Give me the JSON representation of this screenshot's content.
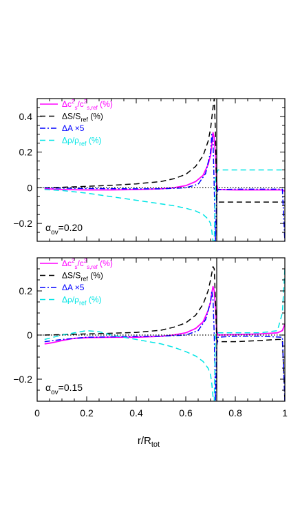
{
  "chart_data": [
    {
      "type": "line",
      "panel": "top",
      "annotation": {
        "symbol": "α",
        "subscript": "ov",
        "value_text": "=0.20"
      },
      "xlim": [
        0,
        1
      ],
      "ylim": [
        -0.3,
        0.5
      ],
      "yticks": [
        -0.2,
        0,
        0.2,
        0.4
      ],
      "ytick_labels": [
        "−0.2",
        "0",
        "0.2",
        "0.4"
      ],
      "grid": false,
      "legend_position": "top-left",
      "series": [
        {
          "name": "Δc²s/c²s,ref (%)",
          "color": "#ff00ff",
          "dash": "solid",
          "x": [
            0.03,
            0.1,
            0.2,
            0.3,
            0.4,
            0.5,
            0.55,
            0.6,
            0.64,
            0.67,
            0.69,
            0.7,
            0.705,
            0.71,
            0.715,
            0.72,
            0.725,
            0.73,
            0.8,
            0.9,
            0.99,
            1.0
          ],
          "y": [
            -0.005,
            -0.01,
            -0.012,
            -0.012,
            -0.01,
            -0.006,
            0.0,
            0.012,
            0.035,
            0.07,
            0.13,
            0.18,
            0.24,
            0.31,
            0.28,
            0.18,
            0.02,
            -0.01,
            -0.012,
            -0.012,
            -0.012,
            -0.02
          ]
        },
        {
          "name": "ΔS/Sref (%)",
          "color": "#000000",
          "dash": "long",
          "x": [
            0.03,
            0.1,
            0.2,
            0.3,
            0.4,
            0.5,
            0.55,
            0.6,
            0.64,
            0.67,
            0.69,
            0.7,
            0.71,
            0.715,
            0.72,
            0.725,
            0.73,
            0.8,
            0.9,
            0.99,
            1.0
          ],
          "y": [
            0.0,
            0.003,
            0.008,
            0.014,
            0.022,
            0.035,
            0.05,
            0.075,
            0.12,
            0.18,
            0.26,
            0.33,
            0.45,
            0.5,
            0.3,
            -0.07,
            -0.08,
            -0.08,
            -0.08,
            -0.08,
            -0.08
          ]
        },
        {
          "name": "ΔA ×5",
          "color": "#0000ff",
          "dash": "dashdot",
          "x": [
            0.03,
            0.1,
            0.2,
            0.3,
            0.4,
            0.5,
            0.6,
            0.65,
            0.68,
            0.7,
            0.705,
            0.71,
            0.715,
            0.72,
            0.725,
            0.73,
            0.8,
            0.9,
            0.99,
            1.0
          ],
          "y": [
            0.0,
            -0.002,
            -0.004,
            -0.005,
            -0.006,
            -0.006,
            0.0,
            0.02,
            0.08,
            0.2,
            0.3,
            0.26,
            0.0,
            -0.3,
            -0.05,
            -0.01,
            -0.008,
            -0.008,
            -0.008,
            -0.3
          ]
        },
        {
          "name": "Δρ/ρref (%)",
          "color": "#00e5e5",
          "dash": "long",
          "x": [
            0.03,
            0.1,
            0.2,
            0.3,
            0.4,
            0.5,
            0.55,
            0.6,
            0.64,
            0.67,
            0.69,
            0.7,
            0.705,
            0.71,
            0.712,
            0.715,
            0.72,
            0.73,
            0.8,
            0.9,
            0.99,
            1.0
          ],
          "y": [
            -0.01,
            -0.015,
            -0.03,
            -0.05,
            -0.07,
            -0.09,
            -0.1,
            -0.115,
            -0.13,
            -0.15,
            -0.175,
            -0.2,
            -0.24,
            -0.3,
            -0.3,
            -0.3,
            0.06,
            0.1,
            0.1,
            0.1,
            0.1,
            0.1
          ]
        },
        {
          "name": "",
          "color": "#000000",
          "dash": "dotted",
          "x": [
            0,
            1
          ],
          "y": [
            0,
            0
          ]
        }
      ],
      "vline_x": 0.725
    },
    {
      "type": "line",
      "panel": "bottom",
      "annotation": {
        "symbol": "α",
        "subscript": "ov",
        "value_text": "=0.15"
      },
      "xlim": [
        0,
        1
      ],
      "ylim": [
        -0.3,
        0.35
      ],
      "xticks": [
        0,
        0.2,
        0.4,
        0.6,
        0.8,
        1
      ],
      "xtick_labels": [
        "0",
        "0.2",
        "0.4",
        "0.6",
        "0.8",
        "1"
      ],
      "yticks": [
        -0.2,
        0,
        0.2
      ],
      "ytick_labels": [
        "−0.2",
        "0",
        "0.2"
      ],
      "xlabel": {
        "main": "r/R",
        "sub": "tot"
      },
      "grid": false,
      "legend_position": "top-left",
      "series": [
        {
          "name": "Δc²s/c²s,ref (%)",
          "color": "#ff00ff",
          "dash": "solid",
          "x": [
            0.03,
            0.06,
            0.1,
            0.15,
            0.2,
            0.3,
            0.4,
            0.5,
            0.55,
            0.6,
            0.64,
            0.67,
            0.69,
            0.7,
            0.705,
            0.71,
            0.715,
            0.72,
            0.725,
            0.73,
            0.8,
            0.9,
            0.97,
            0.99,
            1.0
          ],
          "y": [
            -0.04,
            -0.035,
            -0.025,
            -0.015,
            -0.012,
            -0.01,
            -0.01,
            -0.006,
            0.0,
            0.01,
            0.03,
            0.06,
            0.11,
            0.15,
            0.19,
            0.22,
            0.2,
            0.12,
            0.02,
            0.0,
            0.002,
            0.005,
            0.01,
            0.02,
            0.05
          ]
        },
        {
          "name": "ΔS/Sref (%)",
          "color": "#000000",
          "dash": "long",
          "x": [
            0.03,
            0.1,
            0.2,
            0.3,
            0.4,
            0.5,
            0.55,
            0.6,
            0.64,
            0.67,
            0.69,
            0.7,
            0.71,
            0.715,
            0.72,
            0.725,
            0.73,
            0.8,
            0.9,
            0.97,
            0.99,
            1.0
          ],
          "y": [
            0.0,
            0.002,
            0.005,
            0.008,
            0.012,
            0.022,
            0.035,
            0.055,
            0.09,
            0.14,
            0.2,
            0.25,
            0.31,
            0.3,
            0.15,
            -0.02,
            -0.03,
            -0.03,
            -0.025,
            -0.02,
            -0.02,
            -0.3
          ]
        },
        {
          "name": "ΔA ×5",
          "color": "#0000ff",
          "dash": "dashdot",
          "x": [
            0.03,
            0.1,
            0.2,
            0.3,
            0.4,
            0.5,
            0.6,
            0.65,
            0.68,
            0.7,
            0.705,
            0.71,
            0.715,
            0.72,
            0.725,
            0.73,
            0.8,
            0.9,
            0.99,
            1.0
          ],
          "y": [
            -0.03,
            -0.02,
            -0.01,
            -0.008,
            -0.006,
            -0.005,
            0.0,
            0.02,
            0.07,
            0.15,
            0.2,
            0.16,
            0.0,
            -0.3,
            -0.05,
            -0.01,
            -0.005,
            -0.005,
            -0.01,
            -0.3
          ]
        },
        {
          "name": "Δρ/ρref (%)",
          "color": "#00e5e5",
          "dash": "long",
          "x": [
            0.03,
            0.1,
            0.15,
            0.2,
            0.25,
            0.3,
            0.4,
            0.5,
            0.55,
            0.6,
            0.64,
            0.67,
            0.69,
            0.7,
            0.705,
            0.71,
            0.715,
            0.72,
            0.73,
            0.8,
            0.9,
            0.97,
            0.99,
            1.0
          ],
          "y": [
            -0.02,
            0.0,
            0.01,
            0.02,
            0.015,
            0.0,
            -0.02,
            -0.04,
            -0.055,
            -0.075,
            -0.095,
            -0.12,
            -0.15,
            -0.18,
            -0.22,
            -0.28,
            -0.3,
            0.01,
            0.01,
            0.01,
            0.01,
            0.02,
            0.1,
            0.3
          ]
        },
        {
          "name": "",
          "color": "#000000",
          "dash": "dotted",
          "x": [
            0,
            1
          ],
          "y": [
            0,
            0
          ]
        }
      ],
      "vline_x": 0.725
    }
  ],
  "legend": [
    {
      "key": "c2s",
      "color": "#ff00ff",
      "dash": "solid"
    },
    {
      "key": "S",
      "color": "#000000",
      "dash": "long"
    },
    {
      "key": "A",
      "color": "#0000ff",
      "dash": "dashdot"
    },
    {
      "key": "rho",
      "color": "#00e5e5",
      "dash": "long"
    }
  ],
  "legend_text": {
    "c2s": {
      "delta": "Δc",
      "sup1": "2",
      "sub1": "s",
      "slash": "/c",
      "sup2": "2",
      "sub2": "s,ref",
      "pct": " (%)"
    },
    "S": {
      "main": "ΔS/S",
      "sub": "ref",
      "pct": " (%)"
    },
    "A": {
      "main": "ΔA  ×5"
    },
    "rho": {
      "main": "Δρ/ρ",
      "sub": "ref",
      "pct": " (%)"
    }
  }
}
